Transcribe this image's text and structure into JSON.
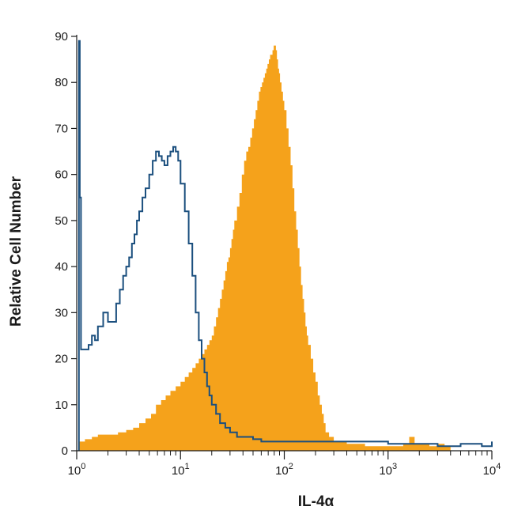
{
  "chart_data": {
    "type": "histogram",
    "xlabel": "IL-4α",
    "ylabel": "Relative Cell Number",
    "x_scale": "log",
    "xlim": [
      1,
      10000
    ],
    "ylim": [
      0,
      90
    ],
    "x_ticks": [
      {
        "value": 1,
        "base": "10",
        "exp": "0"
      },
      {
        "value": 10,
        "base": "10",
        "exp": "1"
      },
      {
        "value": 100,
        "base": "10",
        "exp": "2"
      },
      {
        "value": 1000,
        "base": "10",
        "exp": "3"
      },
      {
        "value": 10000,
        "base": "10",
        "exp": "4"
      }
    ],
    "y_ticks": [
      0,
      10,
      20,
      30,
      40,
      50,
      60,
      70,
      80,
      90
    ],
    "grid": false,
    "series": [
      {
        "kind": "filled",
        "color": "#f5a21b",
        "points": [
          [
            1.05,
            2
          ],
          [
            1.2,
            2.5
          ],
          [
            1.4,
            3
          ],
          [
            1.6,
            3.5
          ],
          [
            2.0,
            3.5
          ],
          [
            2.5,
            4
          ],
          [
            3.0,
            4.5
          ],
          [
            3.5,
            5
          ],
          [
            4.0,
            6
          ],
          [
            4.6,
            7
          ],
          [
            5.2,
            8
          ],
          [
            5.8,
            10
          ],
          [
            6.5,
            11
          ],
          [
            7.2,
            12
          ],
          [
            8.0,
            13
          ],
          [
            9.0,
            14
          ],
          [
            10.0,
            15
          ],
          [
            11.0,
            16
          ],
          [
            12.0,
            17
          ],
          [
            13.0,
            18
          ],
          [
            14.0,
            19
          ],
          [
            15.0,
            20
          ],
          [
            16.0,
            21
          ],
          [
            17.0,
            22
          ],
          [
            18.0,
            23
          ],
          [
            19.0,
            24
          ],
          [
            20.0,
            25
          ],
          [
            21.0,
            27
          ],
          [
            22.0,
            29
          ],
          [
            23.0,
            31
          ],
          [
            24.0,
            33
          ],
          [
            25.0,
            35
          ],
          [
            26.0,
            37
          ],
          [
            27.0,
            39
          ],
          [
            28.0,
            41
          ],
          [
            29.0,
            42
          ],
          [
            30.0,
            44
          ],
          [
            31.0,
            46
          ],
          [
            32.0,
            48
          ],
          [
            33.0,
            50
          ],
          [
            35.0,
            53
          ],
          [
            37.0,
            56
          ],
          [
            39.0,
            60
          ],
          [
            41.0,
            63
          ],
          [
            43.0,
            65
          ],
          [
            45.0,
            66
          ],
          [
            47.0,
            68
          ],
          [
            49.0,
            70
          ],
          [
            51.0,
            72
          ],
          [
            53.0,
            74
          ],
          [
            55.0,
            76
          ],
          [
            57.0,
            78
          ],
          [
            59.0,
            79
          ],
          [
            61.0,
            80
          ],
          [
            63.0,
            81
          ],
          [
            65.0,
            82
          ],
          [
            67.0,
            83
          ],
          [
            69.0,
            84
          ],
          [
            71.0,
            85
          ],
          [
            73.0,
            86
          ],
          [
            75.0,
            86
          ],
          [
            77.0,
            87
          ],
          [
            79.0,
            88
          ],
          [
            81.0,
            88
          ],
          [
            83.0,
            87
          ],
          [
            85.0,
            85
          ],
          [
            87.0,
            83
          ],
          [
            89.0,
            82
          ],
          [
            91.0,
            80
          ],
          [
            94.0,
            78
          ],
          [
            97.0,
            76
          ],
          [
            100.0,
            74
          ],
          [
            105.0,
            70
          ],
          [
            110.0,
            66
          ],
          [
            115.0,
            62
          ],
          [
            120.0,
            57
          ],
          [
            125.0,
            52
          ],
          [
            130.0,
            48
          ],
          [
            135.0,
            44
          ],
          [
            140.0,
            40
          ],
          [
            145.0,
            36
          ],
          [
            150.0,
            33
          ],
          [
            155.0,
            30
          ],
          [
            160.0,
            27
          ],
          [
            165.0,
            25
          ],
          [
            170.0,
            23
          ],
          [
            180.0,
            20
          ],
          [
            190.0,
            17
          ],
          [
            200.0,
            15
          ],
          [
            210.0,
            12
          ],
          [
            220.0,
            10
          ],
          [
            230.0,
            8
          ],
          [
            240.0,
            6
          ],
          [
            250.0,
            4
          ],
          [
            270.0,
            3
          ],
          [
            300.0,
            2
          ],
          [
            400.0,
            1.5
          ],
          [
            600.0,
            1
          ],
          [
            1000.0,
            1
          ],
          [
            1400.0,
            1.5
          ],
          [
            1600.0,
            3
          ],
          [
            1800.0,
            1.5
          ],
          [
            2500.0,
            1
          ],
          [
            3000.0,
            1.5
          ],
          [
            3500.0,
            1
          ],
          [
            4000.0,
            1
          ],
          [
            4000.0,
            0
          ]
        ]
      },
      {
        "kind": "line",
        "color": "#1b4f7e",
        "points": [
          [
            1.05,
            89
          ],
          [
            1.07,
            55
          ],
          [
            1.1,
            22
          ],
          [
            1.2,
            22
          ],
          [
            1.3,
            23
          ],
          [
            1.4,
            25
          ],
          [
            1.5,
            24
          ],
          [
            1.6,
            27
          ],
          [
            1.8,
            30
          ],
          [
            2.0,
            28
          ],
          [
            2.2,
            28
          ],
          [
            2.4,
            32
          ],
          [
            2.6,
            35
          ],
          [
            2.8,
            38
          ],
          [
            3.0,
            40
          ],
          [
            3.2,
            42
          ],
          [
            3.4,
            45
          ],
          [
            3.6,
            47
          ],
          [
            3.8,
            50
          ],
          [
            4.0,
            52
          ],
          [
            4.3,
            55
          ],
          [
            4.6,
            57
          ],
          [
            5.0,
            60
          ],
          [
            5.4,
            63
          ],
          [
            5.8,
            65
          ],
          [
            6.2,
            64
          ],
          [
            6.6,
            63
          ],
          [
            7.0,
            62
          ],
          [
            7.5,
            64
          ],
          [
            8.0,
            65
          ],
          [
            8.5,
            66
          ],
          [
            9.0,
            65
          ],
          [
            9.5,
            63
          ],
          [
            10.0,
            58
          ],
          [
            11.0,
            52
          ],
          [
            12.0,
            45
          ],
          [
            13.0,
            38
          ],
          [
            14.0,
            30
          ],
          [
            15.0,
            24
          ],
          [
            16.0,
            20
          ],
          [
            17.0,
            17
          ],
          [
            18.0,
            14
          ],
          [
            19.0,
            12
          ],
          [
            20.0,
            10
          ],
          [
            22.0,
            8
          ],
          [
            24.0,
            6
          ],
          [
            27.0,
            5
          ],
          [
            30.0,
            4
          ],
          [
            35.0,
            3
          ],
          [
            40.0,
            3
          ],
          [
            50.0,
            2.5
          ],
          [
            60.0,
            2
          ],
          [
            80.0,
            2
          ],
          [
            100.0,
            2
          ],
          [
            150.0,
            2
          ],
          [
            200.0,
            2
          ],
          [
            300.0,
            2
          ],
          [
            500.0,
            2
          ],
          [
            800.0,
            2
          ],
          [
            1000.0,
            1.5
          ],
          [
            2000.0,
            1.5
          ],
          [
            3000.0,
            1
          ],
          [
            5000.0,
            1.5
          ],
          [
            8000.0,
            1
          ],
          [
            10000.0,
            2
          ]
        ]
      }
    ]
  }
}
